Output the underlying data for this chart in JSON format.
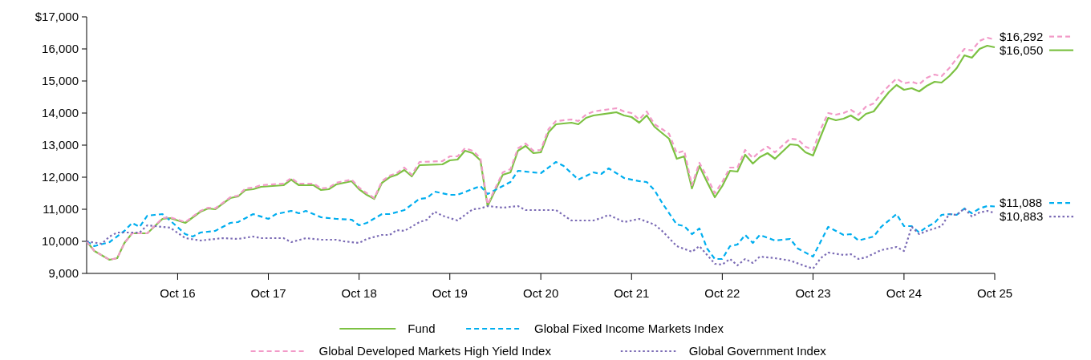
{
  "chart_data": {
    "type": "line",
    "xlim": [
      "2015-10",
      "2025-10"
    ],
    "ylim": [
      9000,
      17000
    ],
    "xticks": [
      {
        "value": "2016-10",
        "label": "Oct 16"
      },
      {
        "value": "2017-10",
        "label": "Oct 17"
      },
      {
        "value": "2018-10",
        "label": "Oct 18"
      },
      {
        "value": "2019-10",
        "label": "Oct 19"
      },
      {
        "value": "2020-10",
        "label": "Oct 20"
      },
      {
        "value": "2021-10",
        "label": "Oct 21"
      },
      {
        "value": "2022-10",
        "label": "Oct 22"
      },
      {
        "value": "2023-10",
        "label": "Oct 23"
      },
      {
        "value": "2024-10",
        "label": "Oct 24"
      },
      {
        "value": "2025-10",
        "label": "Oct 25"
      }
    ],
    "yticks": [
      {
        "value": 9000,
        "label": "9,000"
      },
      {
        "value": 10000,
        "label": "10,000"
      },
      {
        "value": 11000,
        "label": "11,000"
      },
      {
        "value": 12000,
        "label": "12,000"
      },
      {
        "value": 13000,
        "label": "13,000"
      },
      {
        "value": 14000,
        "label": "14,000"
      },
      {
        "value": 15000,
        "label": "15,000"
      },
      {
        "value": 16000,
        "label": "16,000"
      },
      {
        "value": 17000,
        "label": "$17,000"
      }
    ],
    "grid": false,
    "legend": "bottom",
    "marker": "none",
    "series": [
      {
        "name": "Fund",
        "color": "#7cc142",
        "line_style": "solid",
        "x": [
          "2015-10",
          "2015-11",
          "2016-01",
          "2016-02",
          "2016-03",
          "2016-04",
          "2016-06",
          "2016-08",
          "2016-09",
          "2016-11",
          "2017-01",
          "2017-02",
          "2017-03",
          "2017-05",
          "2017-06",
          "2017-07",
          "2017-08",
          "2017-09",
          "2017-12",
          "2018-01",
          "2018-02",
          "2018-04",
          "2018-05",
          "2018-06",
          "2018-07",
          "2018-09",
          "2018-10",
          "2018-11",
          "2018-12",
          "2019-01",
          "2019-02",
          "2019-03",
          "2019-04",
          "2019-05",
          "2019-06",
          "2019-09",
          "2019-10",
          "2019-11",
          "2019-12",
          "2020-01",
          "2020-02",
          "2020-03",
          "2020-05",
          "2020-06",
          "2020-07",
          "2020-08",
          "2020-09",
          "2020-10",
          "2020-11",
          "2020-12",
          "2021-02",
          "2021-03",
          "2021-04",
          "2021-05",
          "2021-08",
          "2021-09",
          "2021-10",
          "2021-11",
          "2021-12",
          "2022-01",
          "2022-02",
          "2022-03",
          "2022-04",
          "2022-05",
          "2022-06",
          "2022-07",
          "2022-08",
          "2022-09",
          "2022-10",
          "2022-11",
          "2022-12",
          "2023-01",
          "2023-02",
          "2023-03",
          "2023-04",
          "2023-05",
          "2023-07",
          "2023-08",
          "2023-09",
          "2023-10",
          "2023-11",
          "2023-12",
          "2024-01",
          "2024-02",
          "2024-03",
          "2024-04",
          "2024-05",
          "2024-06",
          "2024-07",
          "2024-08",
          "2024-09",
          "2024-10",
          "2024-11",
          "2024-12",
          "2025-01",
          "2025-02",
          "2025-03",
          "2025-04",
          "2025-05",
          "2025-06",
          "2025-07",
          "2025-08",
          "2025-09",
          "2025-10"
        ],
        "values": [
          10000,
          9700,
          9425,
          9475,
          9950,
          10250,
          10250,
          10700,
          10725,
          10575,
          10925,
          11025,
          11000,
          11350,
          11400,
          11600,
          11625,
          11700,
          11750,
          11925,
          11750,
          11750,
          11600,
          11625,
          11775,
          11875,
          11625,
          11450,
          11325,
          11825,
          12000,
          12075,
          12225,
          12025,
          12375,
          12400,
          12525,
          12550,
          12825,
          12750,
          12525,
          11100,
          12075,
          12150,
          12825,
          12975,
          12750,
          12775,
          13400,
          13650,
          13700,
          13650,
          13850,
          13925,
          14025,
          13925,
          13875,
          13700,
          13925,
          13575,
          13375,
          13200,
          12575,
          12650,
          11650,
          12350,
          11850,
          11375,
          11725,
          12200,
          12175,
          12700,
          12425,
          12625,
          12750,
          12575,
          13025,
          13000,
          12775,
          12675,
          13275,
          13850,
          13775,
          13825,
          13925,
          13775,
          13975,
          14050,
          14350,
          14650,
          14875,
          14725,
          14775,
          14675,
          14850,
          14975,
          14950,
          15150,
          15400,
          15800,
          15725,
          16000,
          16100,
          16050
        ],
        "value_labels": [
          null,
          null,
          null,
          null,
          null,
          null,
          null,
          null,
          null,
          null,
          null,
          null,
          null,
          null,
          null,
          null,
          null,
          null,
          null,
          null,
          null,
          null,
          null,
          null,
          null,
          null,
          null,
          null,
          null,
          null,
          null,
          null,
          null,
          null,
          null,
          null,
          null,
          null,
          null,
          null,
          null,
          null,
          null,
          null,
          null,
          null,
          null,
          null,
          null,
          null,
          null,
          null,
          null,
          null,
          null,
          null,
          null,
          null,
          null,
          null,
          null,
          null,
          null,
          null,
          null,
          null,
          null,
          null,
          null,
          null,
          null,
          null,
          null,
          null,
          null,
          null,
          null,
          null,
          null,
          null,
          null,
          null,
          null,
          null,
          null,
          null,
          null,
          null,
          null,
          null,
          null,
          null,
          null,
          null,
          null,
          null,
          null,
          null,
          null,
          null,
          null,
          null,
          null,
          "$16,050"
        ]
      },
      {
        "name": "Global Fixed Income Markets Index",
        "color": "#00aeef",
        "line_style": "dashed",
        "x": [
          "2015-10",
          "2015-11",
          "2016-01",
          "2016-03",
          "2016-04",
          "2016-05",
          "2016-06",
          "2016-07",
          "2016-08",
          "2016-09",
          "2016-11",
          "2016-12",
          "2017-01",
          "2017-03",
          "2017-05",
          "2017-06",
          "2017-08",
          "2017-10",
          "2017-11",
          "2018-01",
          "2018-02",
          "2018-03",
          "2018-05",
          "2018-07",
          "2018-09",
          "2018-10",
          "2018-11",
          "2019-01",
          "2019-02",
          "2019-04",
          "2019-06",
          "2019-07",
          "2019-08",
          "2019-10",
          "2019-11",
          "2020-02",
          "2020-03",
          "2020-05",
          "2020-06",
          "2020-07",
          "2020-10",
          "2020-12",
          "2021-01",
          "2021-03",
          "2021-05",
          "2021-06",
          "2021-07",
          "2021-09",
          "2021-11",
          "2021-12",
          "2022-01",
          "2022-02",
          "2022-04",
          "2022-05",
          "2022-06",
          "2022-07",
          "2022-08",
          "2022-09",
          "2022-10",
          "2022-11",
          "2022-12",
          "2023-01",
          "2023-02",
          "2023-03",
          "2023-05",
          "2023-07",
          "2023-08",
          "2023-10",
          "2023-12",
          "2024-02",
          "2024-03",
          "2024-04",
          "2024-06",
          "2024-07",
          "2024-09",
          "2024-10",
          "2024-11",
          "2024-12",
          "2025-01",
          "2025-02",
          "2025-03",
          "2025-04",
          "2025-05",
          "2025-06",
          "2025-07",
          "2025-08",
          "2025-09",
          "2025-10"
        ],
        "values": [
          10000,
          9850,
          9975,
          10325,
          10575,
          10450,
          10800,
          10825,
          10850,
          10650,
          10225,
          10150,
          10275,
          10325,
          10575,
          10600,
          10850,
          10700,
          10850,
          10950,
          10875,
          10950,
          10750,
          10700,
          10675,
          10500,
          10575,
          10850,
          10850,
          10975,
          11325,
          11350,
          11550,
          11450,
          11450,
          11725,
          11475,
          11725,
          11850,
          12200,
          12125,
          12475,
          12350,
          11925,
          12150,
          12100,
          12275,
          11975,
          11875,
          11850,
          11600,
          11200,
          10525,
          10475,
          10225,
          10400,
          9775,
          9450,
          9450,
          9850,
          9900,
          10200,
          9950,
          10200,
          10025,
          10075,
          9775,
          9525,
          10450,
          10200,
          10225,
          10025,
          10150,
          10450,
          10850,
          10475,
          10475,
          10275,
          10450,
          10575,
          10825,
          10850,
          10825,
          11025,
          10875,
          11025,
          11100,
          11088
        ],
        "value_labels": [
          null,
          null,
          null,
          null,
          null,
          null,
          null,
          null,
          null,
          null,
          null,
          null,
          null,
          null,
          null,
          null,
          null,
          null,
          null,
          null,
          null,
          null,
          null,
          null,
          null,
          null,
          null,
          null,
          null,
          null,
          null,
          null,
          null,
          null,
          null,
          null,
          null,
          null,
          null,
          null,
          null,
          null,
          null,
          null,
          null,
          null,
          null,
          null,
          null,
          null,
          null,
          null,
          null,
          null,
          null,
          null,
          null,
          null,
          null,
          null,
          null,
          null,
          null,
          null,
          null,
          null,
          null,
          null,
          null,
          null,
          null,
          null,
          null,
          null,
          null,
          null,
          null,
          null,
          null,
          null,
          null,
          null,
          null,
          null,
          null,
          null,
          null,
          "$11,088"
        ]
      },
      {
        "name": "Global Developed Markets High Yield Index",
        "color": "#f29ac8",
        "line_style": "dashed",
        "x": [
          "2015-10",
          "2015-11",
          "2016-01",
          "2016-02",
          "2016-03",
          "2016-04",
          "2016-06",
          "2016-08",
          "2016-09",
          "2016-11",
          "2017-01",
          "2017-02",
          "2017-03",
          "2017-05",
          "2017-06",
          "2017-07",
          "2017-08",
          "2017-09",
          "2017-12",
          "2018-01",
          "2018-02",
          "2018-04",
          "2018-05",
          "2018-06",
          "2018-07",
          "2018-09",
          "2018-10",
          "2018-11",
          "2018-12",
          "2019-01",
          "2019-02",
          "2019-03",
          "2019-04",
          "2019-05",
          "2019-06",
          "2019-09",
          "2019-10",
          "2019-11",
          "2019-12",
          "2020-01",
          "2020-02",
          "2020-03",
          "2020-05",
          "2020-06",
          "2020-07",
          "2020-08",
          "2020-09",
          "2020-10",
          "2020-11",
          "2020-12",
          "2021-02",
          "2021-03",
          "2021-04",
          "2021-05",
          "2021-08",
          "2021-09",
          "2021-10",
          "2021-11",
          "2021-12",
          "2022-01",
          "2022-02",
          "2022-03",
          "2022-04",
          "2022-05",
          "2022-06",
          "2022-07",
          "2022-08",
          "2022-09",
          "2022-10",
          "2022-11",
          "2022-12",
          "2023-01",
          "2023-02",
          "2023-03",
          "2023-04",
          "2023-05",
          "2023-07",
          "2023-08",
          "2023-09",
          "2023-10",
          "2023-11",
          "2023-12",
          "2024-01",
          "2024-02",
          "2024-03",
          "2024-04",
          "2024-05",
          "2024-06",
          "2024-07",
          "2024-08",
          "2024-09",
          "2024-10",
          "2024-11",
          "2024-12",
          "2025-01",
          "2025-02",
          "2025-03",
          "2025-04",
          "2025-05",
          "2025-06",
          "2025-07",
          "2025-08",
          "2025-09",
          "2025-10"
        ],
        "values": [
          10000,
          9700,
          9425,
          9475,
          9950,
          10250,
          10250,
          10725,
          10750,
          10600,
          10950,
          11050,
          11025,
          11375,
          11425,
          11650,
          11675,
          11750,
          11800,
          11975,
          11800,
          11800,
          11650,
          11675,
          11825,
          11925,
          11675,
          11500,
          11350,
          11875,
          12050,
          12125,
          12300,
          12075,
          12475,
          12500,
          12650,
          12650,
          12900,
          12825,
          12600,
          11150,
          12150,
          12250,
          12900,
          13050,
          12825,
          12850,
          13500,
          13750,
          13800,
          13750,
          13950,
          14050,
          14150,
          14050,
          14000,
          13800,
          14050,
          13650,
          13500,
          13350,
          12750,
          12825,
          11750,
          12450,
          12000,
          11500,
          11850,
          12300,
          12300,
          12850,
          12600,
          12800,
          12950,
          12775,
          13200,
          13175,
          12950,
          12850,
          13500,
          14000,
          13950,
          14000,
          14100,
          13950,
          14200,
          14300,
          14600,
          14850,
          15075,
          14925,
          14975,
          14900,
          15100,
          15200,
          15150,
          15400,
          15700,
          16000,
          15950,
          16250,
          16350,
          16292
        ],
        "value_labels": [
          null,
          null,
          null,
          null,
          null,
          null,
          null,
          null,
          null,
          null,
          null,
          null,
          null,
          null,
          null,
          null,
          null,
          null,
          null,
          null,
          null,
          null,
          null,
          null,
          null,
          null,
          null,
          null,
          null,
          null,
          null,
          null,
          null,
          null,
          null,
          null,
          null,
          null,
          null,
          null,
          null,
          null,
          null,
          null,
          null,
          null,
          null,
          null,
          null,
          null,
          null,
          null,
          null,
          null,
          null,
          null,
          null,
          null,
          null,
          null,
          null,
          null,
          null,
          null,
          null,
          null,
          null,
          null,
          null,
          null,
          null,
          null,
          null,
          null,
          null,
          null,
          null,
          null,
          null,
          null,
          null,
          null,
          null,
          null,
          null,
          null,
          null,
          null,
          null,
          null,
          null,
          null,
          null,
          null,
          null,
          null,
          null,
          null,
          null,
          null,
          null,
          null,
          null,
          "$16,292"
        ]
      },
      {
        "name": "Global Government Index",
        "color": "#7b6bb5",
        "line_style": "dotted",
        "x": [
          "2015-10",
          "2015-12",
          "2016-01",
          "2016-02",
          "2016-05",
          "2016-06",
          "2016-09",
          "2016-11",
          "2017-01",
          "2017-03",
          "2017-04",
          "2017-06",
          "2017-08",
          "2017-09",
          "2017-12",
          "2018-01",
          "2018-03",
          "2018-05",
          "2018-07",
          "2018-08",
          "2018-10",
          "2018-11",
          "2019-01",
          "2019-02",
          "2019-03",
          "2019-04",
          "2019-06",
          "2019-07",
          "2019-08",
          "2019-09",
          "2019-11",
          "2020-01",
          "2020-02",
          "2020-03",
          "2020-05",
          "2020-07",
          "2020-08",
          "2020-10",
          "2020-12",
          "2021-02",
          "2021-05",
          "2021-06",
          "2021-07",
          "2021-09",
          "2021-11",
          "2022-01",
          "2022-02",
          "2022-04",
          "2022-06",
          "2022-07",
          "2022-08",
          "2022-09",
          "2022-10",
          "2022-11",
          "2022-12",
          "2023-01",
          "2023-02",
          "2023-03",
          "2023-05",
          "2023-07",
          "2023-09",
          "2023-10",
          "2023-11",
          "2023-12",
          "2024-02",
          "2024-03",
          "2024-04",
          "2024-05",
          "2024-07",
          "2024-09",
          "2024-10",
          "2024-11",
          "2024-12",
          "2025-01",
          "2025-02",
          "2025-03",
          "2025-04",
          "2025-05",
          "2025-06",
          "2025-07",
          "2025-08",
          "2025-09",
          "2025-10"
        ],
        "values": [
          10000,
          9925,
          10150,
          10275,
          10275,
          10500,
          10425,
          10100,
          10025,
          10075,
          10100,
          10075,
          10150,
          10100,
          10100,
          9975,
          10100,
          10050,
          10050,
          10000,
          9950,
          10075,
          10200,
          10200,
          10350,
          10325,
          10600,
          10675,
          10925,
          10800,
          10650,
          11000,
          11025,
          11100,
          11050,
          11100,
          10975,
          10975,
          10975,
          10650,
          10650,
          10725,
          10825,
          10600,
          10700,
          10525,
          10325,
          9850,
          9675,
          9850,
          9575,
          9300,
          9275,
          9450,
          9250,
          9450,
          9325,
          9525,
          9475,
          9400,
          9225,
          9150,
          9475,
          9650,
          9575,
          9600,
          9450,
          9500,
          9725,
          9825,
          9700,
          10450,
          10225,
          10325,
          10400,
          10475,
          10850,
          10825,
          11025,
          10775,
          10900,
          10950,
          10883
        ],
        "value_labels": [
          null,
          null,
          null,
          null,
          null,
          null,
          null,
          null,
          null,
          null,
          null,
          null,
          null,
          null,
          null,
          null,
          null,
          null,
          null,
          null,
          null,
          null,
          null,
          null,
          null,
          null,
          null,
          null,
          null,
          null,
          null,
          null,
          null,
          null,
          null,
          null,
          null,
          null,
          null,
          null,
          null,
          null,
          null,
          null,
          null,
          null,
          null,
          null,
          null,
          null,
          null,
          null,
          null,
          null,
          null,
          null,
          null,
          null,
          null,
          null,
          null,
          null,
          null,
          null,
          null,
          null,
          null,
          null,
          null,
          null,
          null,
          null,
          null,
          null,
          null,
          null,
          null,
          null,
          null,
          null,
          null,
          null,
          "$10,883"
        ]
      }
    ]
  }
}
